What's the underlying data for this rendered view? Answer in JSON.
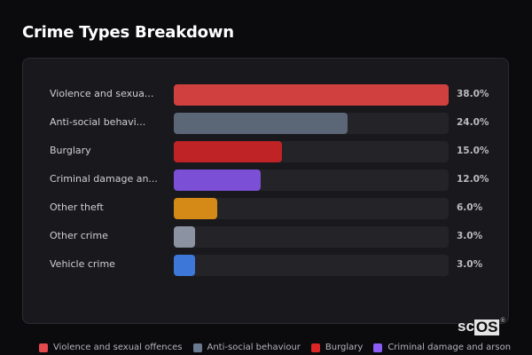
{
  "title": "Crime Types Breakdown",
  "rows": [
    {
      "label": "Violence and sexua...",
      "value": 38.0,
      "pct": "38.0%",
      "color": "#d0403f"
    },
    {
      "label": "Anti-social behavi...",
      "value": 24.0,
      "pct": "24.0%",
      "color": "#5b6676"
    },
    {
      "label": "Burglary",
      "value": 15.0,
      "pct": "15.0%",
      "color": "#bf2326"
    },
    {
      "label": "Criminal damage an...",
      "value": 12.0,
      "pct": "12.0%",
      "color": "#7b4fd6"
    },
    {
      "label": "Other theft",
      "value": 6.0,
      "pct": "6.0%",
      "color": "#d58a17"
    },
    {
      "label": "Other crime",
      "value": 3.0,
      "pct": "3.0%",
      "color": "#8b93a2"
    },
    {
      "label": "Vehicle crime",
      "value": 3.0,
      "pct": "3.0%",
      "color": "#3d78d8"
    }
  ],
  "legend": [
    {
      "label": "Violence and sexual offences",
      "color": "#e5484d"
    },
    {
      "label": "Anti-social behaviour",
      "color": "#6b7a90"
    },
    {
      "label": "Burglary",
      "color": "#dc2626"
    },
    {
      "label": "Criminal damage and arson",
      "color": "#8b5cf6"
    }
  ],
  "logo": {
    "sc": "sc",
    "os": "OS",
    "reg": "®"
  },
  "chart_data": {
    "type": "bar",
    "orientation": "horizontal",
    "title": "Crime Types Breakdown",
    "categories": [
      "Violence and sexual offences",
      "Anti-social behaviour",
      "Burglary",
      "Criminal damage and arson",
      "Other theft",
      "Other crime",
      "Vehicle crime"
    ],
    "values": [
      38.0,
      24.0,
      15.0,
      12.0,
      6.0,
      3.0,
      3.0
    ],
    "unit": "%",
    "xlabel": "",
    "ylabel": "",
    "grid": false,
    "legend_position": "bottom"
  }
}
